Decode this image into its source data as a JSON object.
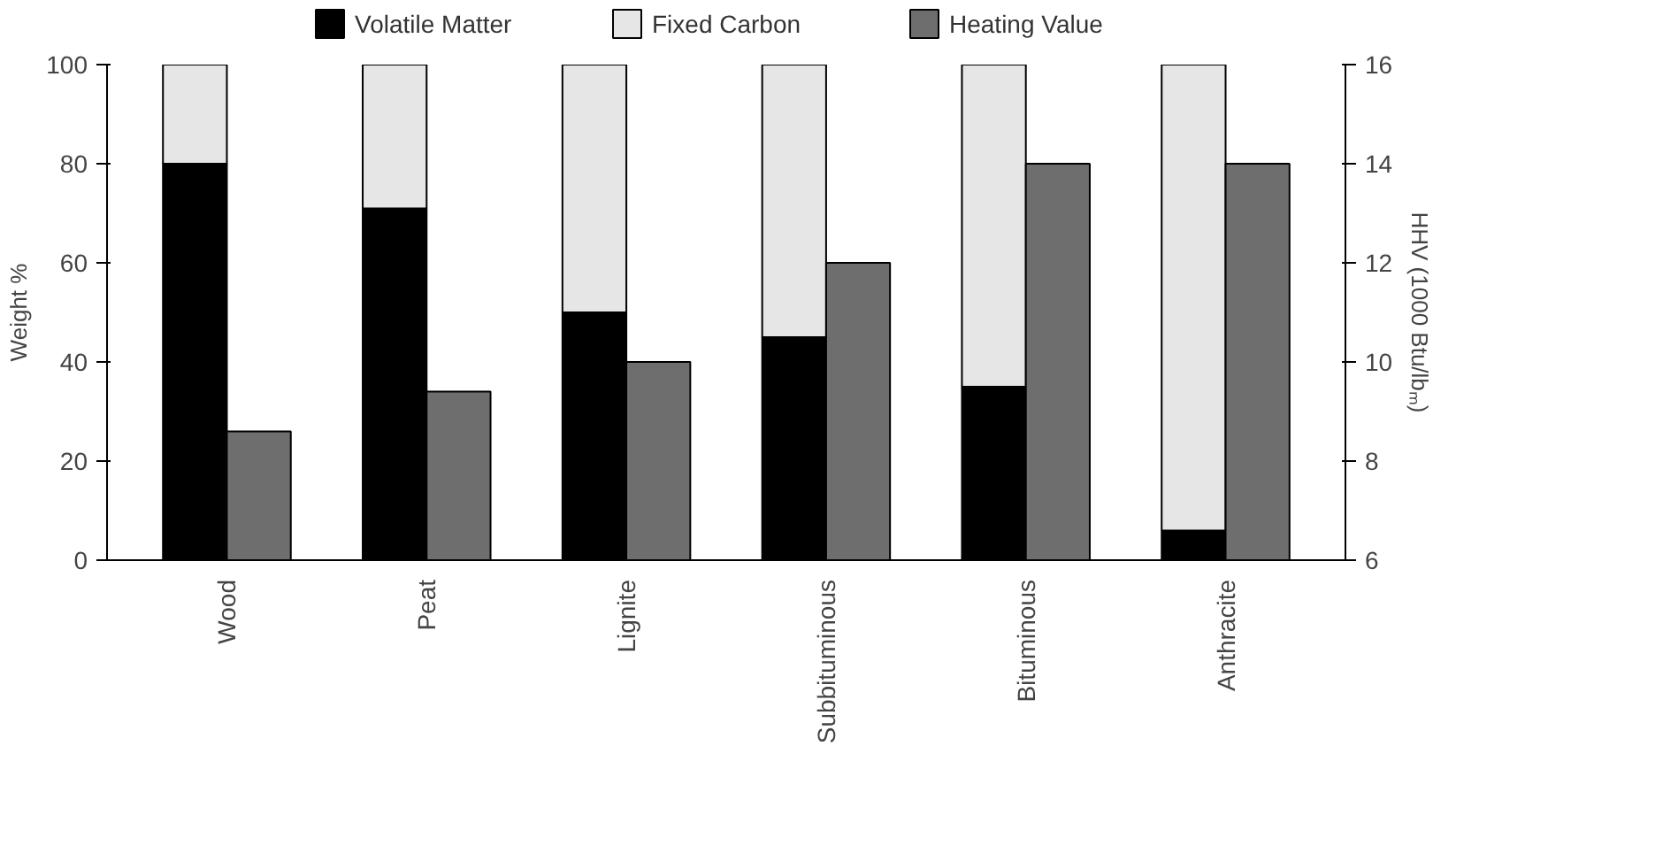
{
  "chart_data": {
    "type": "bar",
    "stacked": true,
    "categories": [
      "Wood",
      "Peat",
      "Lignite",
      "Subbituminous",
      "Bituminous",
      "Anthracite"
    ],
    "series": [
      {
        "name": "Volatile Matter",
        "color": "#000000",
        "values": [
          80,
          71,
          50,
          45,
          35,
          6
        ]
      },
      {
        "name": "Fixed Carbon",
        "color": "#e6e6e6",
        "values": [
          20,
          29,
          50,
          55,
          65,
          94
        ]
      },
      {
        "name": "Heating Value",
        "color": "#6e6e6e",
        "axis": "y2",
        "values": [
          8.6,
          9.4,
          10,
          12,
          14,
          14
        ]
      }
    ],
    "ylabel": "Weight %",
    "y2label": "HHV (1000 Btu/lbₘ)",
    "ylim": [
      0,
      100
    ],
    "yticks": [
      0,
      20,
      40,
      60,
      80,
      100
    ],
    "y2lim": [
      6,
      16
    ],
    "y2ticks": [
      6,
      8,
      10,
      12,
      14,
      16
    ],
    "grid": false,
    "legend": "top"
  }
}
